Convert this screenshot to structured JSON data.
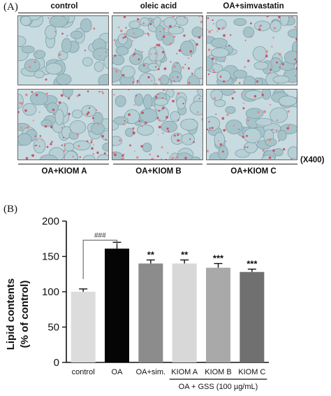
{
  "panel_a": {
    "label": "(A)",
    "top_labels": [
      "control",
      "oleic acid",
      "OA+simvastatin"
    ],
    "bottom_labels": [
      "OA+KIOM A",
      "OA+KIOM B",
      "OA+KIOM C"
    ],
    "magnification": "(X400)"
  },
  "panel_b": {
    "label": "(B)",
    "significance_bracket": "###",
    "group_label": "OA + GSS (100 µg/mL)",
    "bar_colors": [
      "#dcdcdc",
      "#050505",
      "#8c8c8c",
      "#d8d8d8",
      "#a9a9a9",
      "#707070"
    ]
  },
  "chart_data": {
    "type": "bar",
    "categories": [
      "control",
      "OA",
      "OA+sim.",
      "KIOM A",
      "KIOM B",
      "KIOM C"
    ],
    "values": [
      100,
      161,
      140,
      140,
      134,
      128
    ],
    "errors": [
      4,
      9,
      5,
      5,
      6,
      4
    ],
    "significance": [
      "",
      "",
      "**",
      "**",
      "***",
      "***"
    ],
    "ylabel": "Lipid contents\n(% of control)",
    "yticks": [
      0,
      50,
      100,
      150,
      200
    ],
    "ylim": [
      0,
      200
    ],
    "grid": false
  }
}
